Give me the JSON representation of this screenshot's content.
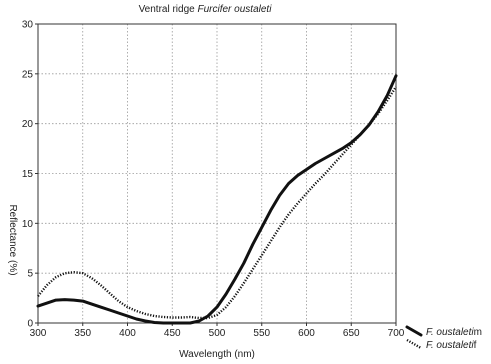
{
  "chart_data": {
    "type": "line",
    "title_prefix": "Ventral ridge ",
    "title_italic": "Furcifer oustaleti",
    "xlabel": "Wavelength (nm)",
    "ylabel": "Reflectance (%)",
    "xlim": [
      300,
      700
    ],
    "ylim": [
      0,
      30
    ],
    "xticks": [
      300,
      350,
      400,
      450,
      500,
      550,
      600,
      650,
      700
    ],
    "yticks": [
      0,
      5,
      10,
      15,
      20,
      25,
      30
    ],
    "grid": true,
    "legend_placement": "bottom-right",
    "series": [
      {
        "name_italic": "F. oustaleti",
        "name_suffix": "m",
        "style": "solid",
        "color": "#111111",
        "x": [
          300,
          310,
          320,
          330,
          340,
          350,
          360,
          370,
          380,
          390,
          400,
          410,
          420,
          430,
          440,
          450,
          460,
          470,
          480,
          490,
          500,
          510,
          520,
          530,
          540,
          550,
          560,
          570,
          580,
          590,
          600,
          610,
          620,
          630,
          640,
          650,
          660,
          670,
          680,
          690,
          700
        ],
        "y": [
          1.7,
          2.0,
          2.3,
          2.35,
          2.3,
          2.2,
          1.9,
          1.6,
          1.3,
          1.0,
          0.7,
          0.4,
          0.2,
          0.05,
          0.0,
          0.0,
          0.0,
          0.0,
          0.2,
          0.7,
          1.6,
          2.9,
          4.4,
          6.0,
          7.9,
          9.6,
          11.3,
          12.8,
          14.0,
          14.8,
          15.4,
          16.0,
          16.5,
          17.0,
          17.5,
          18.1,
          18.9,
          19.9,
          21.2,
          22.8,
          24.8
        ]
      },
      {
        "name_italic": "F. oustaleti",
        "name_suffix": "f",
        "style": "dotted",
        "color": "#111111",
        "x": [
          300,
          310,
          320,
          330,
          340,
          350,
          360,
          370,
          380,
          390,
          400,
          410,
          420,
          430,
          440,
          450,
          460,
          470,
          480,
          490,
          500,
          510,
          520,
          530,
          540,
          550,
          560,
          570,
          580,
          590,
          600,
          610,
          620,
          630,
          640,
          650,
          660,
          670,
          680,
          690,
          700
        ],
        "y": [
          2.7,
          3.8,
          4.6,
          5.0,
          5.1,
          5.0,
          4.5,
          3.8,
          3.0,
          2.2,
          1.6,
          1.2,
          0.9,
          0.7,
          0.6,
          0.55,
          0.55,
          0.6,
          0.5,
          0.5,
          0.8,
          1.6,
          2.7,
          4.0,
          5.4,
          6.8,
          8.2,
          9.6,
          10.9,
          12.0,
          13.0,
          14.0,
          14.9,
          15.9,
          16.9,
          17.9,
          18.9,
          19.9,
          21.0,
          22.3,
          23.7
        ]
      }
    ]
  }
}
